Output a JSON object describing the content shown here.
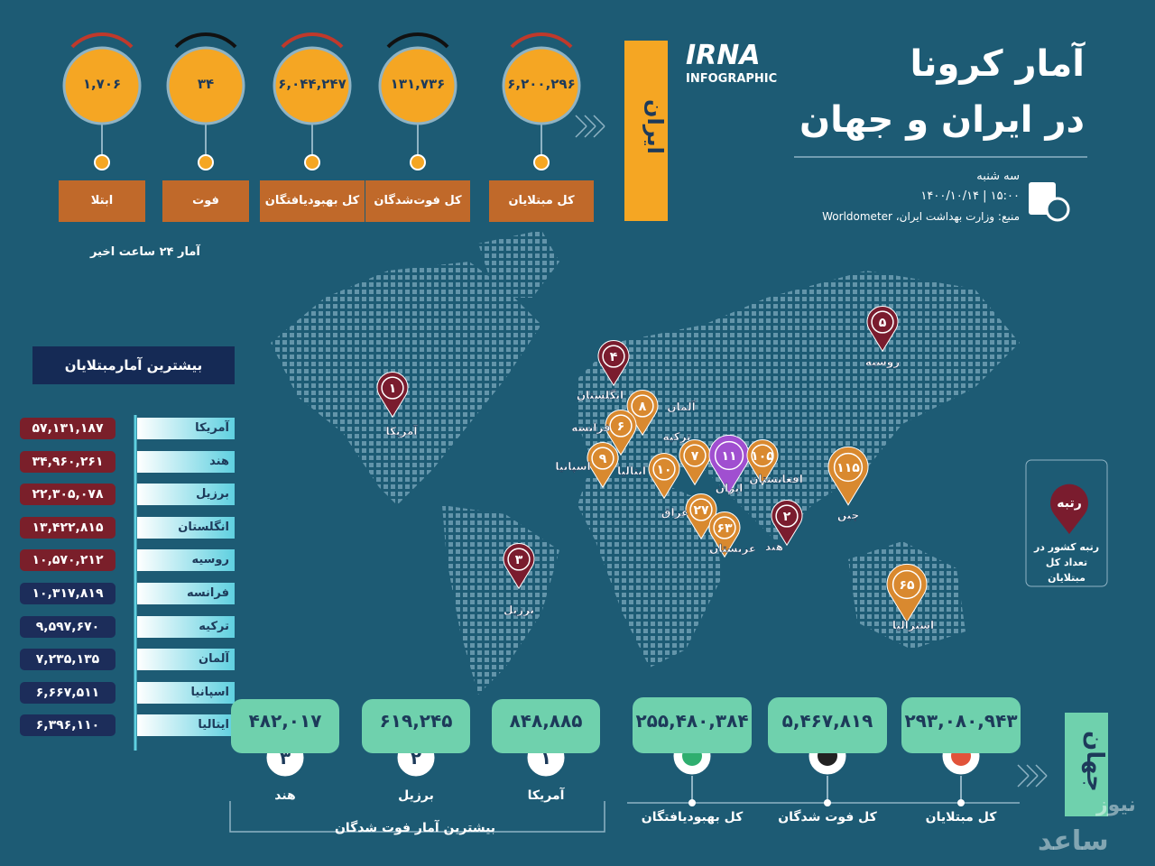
{
  "header": {
    "logo": "IRNA",
    "logo_sub": "INFOGRAPHIC",
    "title_line1": "آمار کرونا",
    "title_line2": "در ایران و جهان",
    "day": "سه شنبه",
    "date_time": "۱۴۰۰/۱۰/۱۴  |  ۱۵:۰۰",
    "source": "منبع: وزارت بهداشت ایران، Worldometer"
  },
  "iran": {
    "label": "ایران",
    "note": "آمار ۲۴ ساعت اخیر",
    "stats": [
      {
        "value": "۱,۷۰۶",
        "label": "ابتلا"
      },
      {
        "value": "۳۴",
        "label": "فوت"
      },
      {
        "value": "۶,۰۴۴,۲۴۷",
        "label": "کل بهبودیافتگان"
      },
      {
        "value": "۱۳۱,۷۳۶",
        "label": "کل فوت‌شدگان"
      },
      {
        "value": "۶,۲۰۰,۲۹۶",
        "label": "کل مبتلایان"
      }
    ]
  },
  "top_cases": {
    "title": "بیشترین آمارمبتلایان",
    "rows": [
      {
        "country": "آمریکا",
        "value": "۵۷,۱۳۱,۱۸۷"
      },
      {
        "country": "هند",
        "value": "۳۴,۹۶۰,۲۶۱"
      },
      {
        "country": "برزیل",
        "value": "۲۲,۳۰۵,۰۷۸"
      },
      {
        "country": "انگلستان",
        "value": "۱۳,۴۲۲,۸۱۵"
      },
      {
        "country": "روسیه",
        "value": "۱۰,۵۷۰,۲۱۲"
      },
      {
        "country": "فرانسه",
        "value": "۱۰,۳۱۷,۸۱۹"
      },
      {
        "country": "ترکیه",
        "value": "۹,۵۹۷,۶۷۰"
      },
      {
        "country": "آلمان",
        "value": "۷,۲۳۵,۱۳۵"
      },
      {
        "country": "اسپانیا",
        "value": "۶,۶۶۷,۵۱۱"
      },
      {
        "country": "ایتالیا",
        "value": "۶,۳۹۶,۱۱۰"
      }
    ]
  },
  "map": {
    "pins": [
      {
        "rank": "۱",
        "country": "آمریکا",
        "color": "#7a1c2e"
      },
      {
        "rank": "۳",
        "country": "برزیل",
        "color": "#7a1c2e"
      },
      {
        "rank": "۴",
        "country": "انگلستان",
        "color": "#7a1c2e"
      },
      {
        "rank": "۸",
        "country": "آلمان",
        "color": "#d9892f"
      },
      {
        "rank": "۶",
        "country": "فرانسه",
        "color": "#d9892f"
      },
      {
        "rank": "۷",
        "country": "ترکیه",
        "color": "#d9892f"
      },
      {
        "rank": "۹",
        "country": "اسپانیا",
        "color": "#d9892f"
      },
      {
        "rank": "۱۰",
        "country": "ایتالیا",
        "color": "#d9892f"
      },
      {
        "rank": "۱۱",
        "country": "ایران",
        "color": "#a04fd0"
      },
      {
        "rank": "۱۰۵",
        "country": "افغانستان",
        "color": "#d9892f"
      },
      {
        "rank": "۲۷",
        "country": "عراق",
        "color": "#d9892f"
      },
      {
        "rank": "۶۳",
        "country": "عربستان",
        "color": "#d9892f"
      },
      {
        "rank": "۲",
        "country": "هند",
        "color": "#7a1c2e"
      },
      {
        "rank": "۱۱۵",
        "country": "چین",
        "color": "#d9892f"
      },
      {
        "rank": "۵",
        "country": "روسیه",
        "color": "#7a1c2e"
      },
      {
        "rank": "۶۵",
        "country": "استرالیا",
        "color": "#d9892f"
      }
    ],
    "legend": {
      "title": "رتبه",
      "caption": "رتبه کشور در تعداد کل مبتلایان"
    }
  },
  "world": {
    "label": "جهان",
    "stats": [
      {
        "value": "۲۵۵,۴۸۰,۳۸۴",
        "label": "کل بهبودیافتگان"
      },
      {
        "value": "۵,۴۶۷,۸۱۹",
        "label": "کل فوت شدگان"
      },
      {
        "value": "۲۹۳,۰۸۰,۹۴۳",
        "label": "کل مبتلایان"
      }
    ],
    "deaths_title": "بیشترین آمار فوت شدگان",
    "top_deaths": [
      {
        "value": "۴۸۲,۰۱۷",
        "rank": "۳",
        "country": "هند"
      },
      {
        "value": "۶۱۹,۲۴۵",
        "rank": "۲",
        "country": "برزیل"
      },
      {
        "value": "۸۴۸,۸۸۵",
        "rank": "۱",
        "country": "آمریکا"
      }
    ]
  },
  "watermark": [
    "نیوز",
    "ساعد"
  ]
}
